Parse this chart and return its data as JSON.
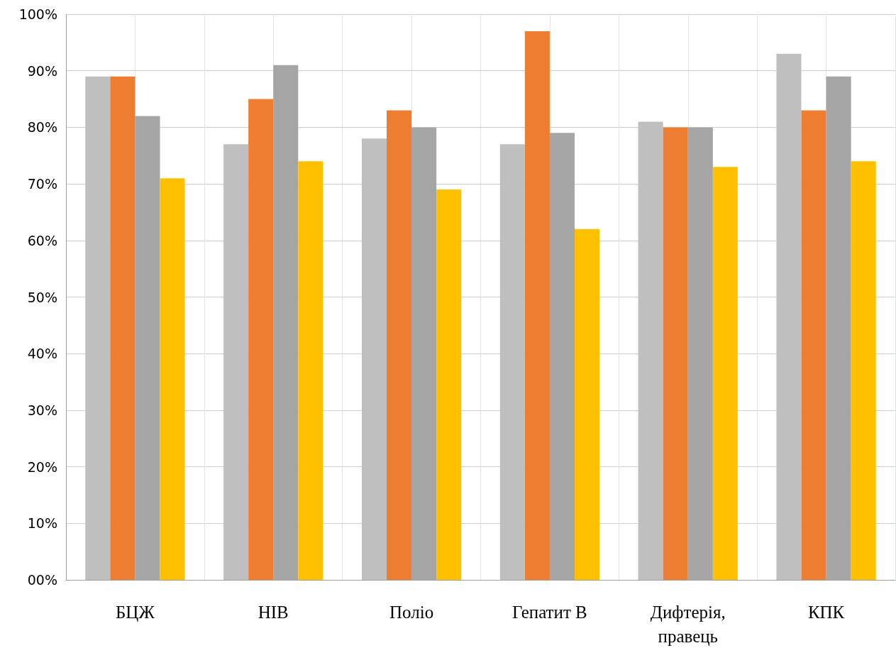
{
  "chart_data": {
    "type": "bar",
    "categories": [
      "БЦЖ",
      "HIB",
      "Поліо",
      "Гепатит В",
      "Дифтерія, правець",
      "КПК"
    ],
    "series": [
      {
        "color": "#bfbfbf",
        "values": [
          89,
          77,
          78,
          77,
          81,
          93
        ]
      },
      {
        "color": "#ed7d31",
        "values": [
          89,
          85,
          83,
          97,
          80,
          83
        ]
      },
      {
        "color": "#a5a5a5",
        "values": [
          82,
          91,
          80,
          79,
          80,
          89
        ]
      },
      {
        "color": "#ffc000",
        "values": [
          71,
          74,
          69,
          62,
          73,
          74
        ]
      }
    ],
    "ylim": [
      0,
      100
    ],
    "yticks": [
      {
        "value": 0,
        "label": "00%"
      },
      {
        "value": 10,
        "label": "10%"
      },
      {
        "value": 20,
        "label": "20%"
      },
      {
        "value": 30,
        "label": "30%"
      },
      {
        "value": 40,
        "label": "40%"
      },
      {
        "value": 50,
        "label": "50%"
      },
      {
        "value": 60,
        "label": "60%"
      },
      {
        "value": 70,
        "label": "70%"
      },
      {
        "value": 80,
        "label": "80%"
      },
      {
        "value": 90,
        "label": "90%"
      },
      {
        "value": 100,
        "label": "100%"
      }
    ],
    "grid": true
  }
}
